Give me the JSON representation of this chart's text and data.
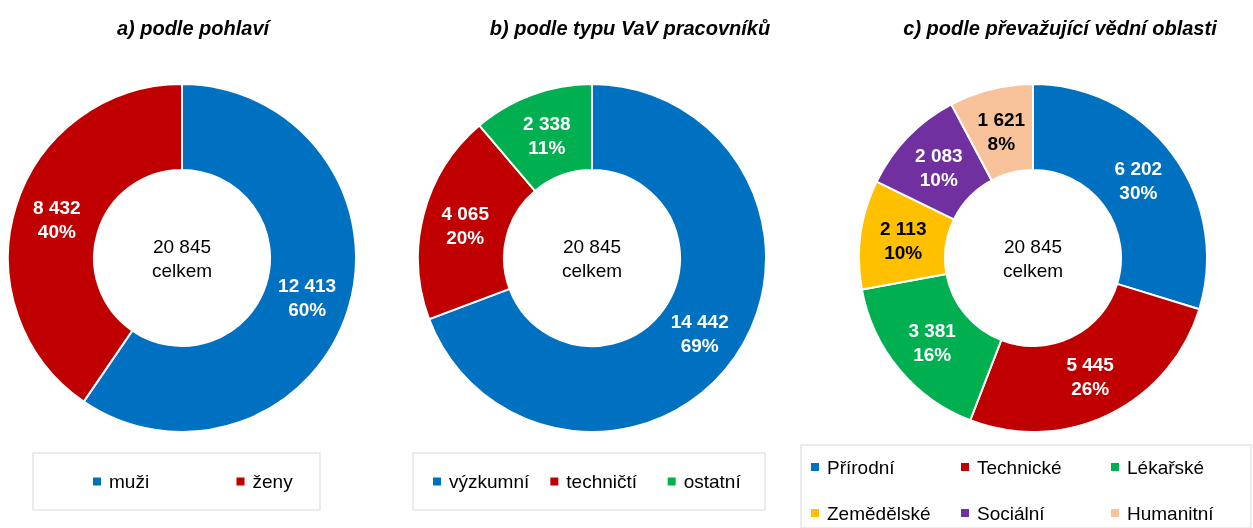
{
  "chart_data": [
    {
      "type": "donut",
      "title": "a) podle pohlaví",
      "categories": [
        "muži",
        "ženy"
      ],
      "values": [
        12413,
        8432
      ],
      "colors": [
        "#0070c0",
        "#c00000"
      ],
      "value_labels": [
        "12 413\n60%",
        "8 432\n40%"
      ],
      "annotations": [
        "20 845\ncelkem"
      ],
      "legend": "bottom"
    },
    {
      "type": "donut",
      "title": "b) podle typu VaV pracovníků",
      "categories": [
        "výzkumní",
        "techničtí",
        "ostatní"
      ],
      "values": [
        14442,
        4065,
        2338
      ],
      "colors": [
        "#0070c0",
        "#c00000",
        "#00b050"
      ],
      "value_labels": [
        "14 442\n69%",
        "4 065\n20%",
        "2 338\n11%"
      ],
      "annotations": [
        "20 845\ncelkem"
      ],
      "legend": "bottom"
    },
    {
      "type": "donut",
      "title": "c) podle převažující vědní oblasti",
      "categories": [
        "Přírodní",
        "Technické",
        "Lékařské",
        "Zemědělské",
        "Sociální",
        "Humanitní"
      ],
      "values": [
        6202,
        5445,
        3381,
        2113,
        2083,
        1621
      ],
      "colors": [
        "#0070c0",
        "#c00000",
        "#00b050",
        "#ffc000",
        "#7030a0",
        "#f8c29a"
      ],
      "value_labels": [
        "6 202\n30%",
        "5 445\n26%",
        "3 381\n16%",
        "2 113\n10%",
        "2 083\n10%",
        "1 621\n8%"
      ],
      "annotations": [
        "20 845\ncelkem"
      ],
      "legend": "bottom"
    }
  ]
}
